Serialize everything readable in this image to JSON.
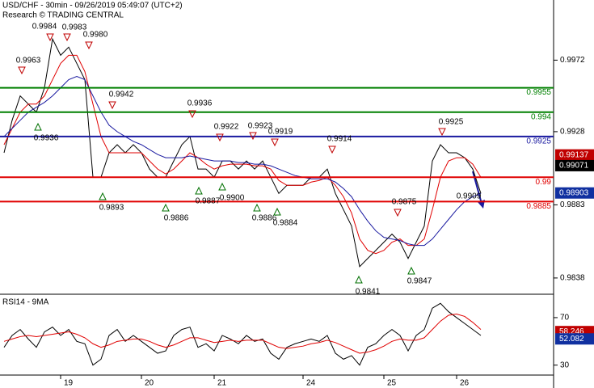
{
  "chart_data": [
    {
      "type": "line",
      "title": "USD/CHF - 30min - 09/26/2019 05:49:07 (UTC+2)",
      "subtitle": "Research © TRADING CENTRAL",
      "ylim": [
        0.9829,
        1.0009
      ],
      "yticks": [
        0.9972,
        0.9928,
        0.9883,
        0.9838
      ],
      "series": [
        {
          "name": "Close",
          "color": "#000000",
          "values": [
            0.9915,
            0.9935,
            0.995,
            0.9945,
            0.994,
            0.9955,
            0.9985,
            0.9975,
            0.998,
            0.997,
            0.996,
            0.99,
            0.99,
            0.9915,
            0.992,
            0.9915,
            0.992,
            0.9915,
            0.9905,
            0.99,
            0.99,
            0.991,
            0.992,
            0.9925,
            0.9905,
            0.9905,
            0.99,
            0.991,
            0.991,
            0.9905,
            0.991,
            0.9905,
            0.991,
            0.99,
            0.989,
            0.9895,
            0.9895,
            0.9895,
            0.99,
            0.99,
            0.9905,
            0.989,
            0.988,
            0.987,
            0.9845,
            0.985,
            0.9855,
            0.986,
            0.9865,
            0.986,
            0.985,
            0.986,
            0.987,
            0.991,
            0.992,
            0.9915,
            0.9915,
            0.9912,
            0.9905,
            0.989
          ]
        },
        {
          "name": "MA fast",
          "color": "#e00000",
          "values": [
            0.992,
            0.993,
            0.994,
            0.9945,
            0.9945,
            0.995,
            0.996,
            0.997,
            0.9975,
            0.9975,
            0.9965,
            0.9945,
            0.9925,
            0.9915,
            0.9915,
            0.9915,
            0.9915,
            0.9915,
            0.991,
            0.9905,
            0.9902,
            0.9905,
            0.991,
            0.9915,
            0.9912,
            0.9908,
            0.9905,
            0.9907,
            0.9908,
            0.9908,
            0.9908,
            0.9907,
            0.9907,
            0.9905,
            0.9898,
            0.9895,
            0.9895,
            0.9895,
            0.9897,
            0.9898,
            0.99,
            0.9895,
            0.9888,
            0.9878,
            0.9862,
            0.9855,
            0.9853,
            0.9855,
            0.986,
            0.9862,
            0.9858,
            0.9858,
            0.9862,
            0.988,
            0.99,
            0.991,
            0.9912,
            0.9912,
            0.9908,
            0.99
          ]
        },
        {
          "name": "MA slow",
          "color": "#1a1aa0",
          "values": [
            0.9925,
            0.993,
            0.9935,
            0.994,
            0.9943,
            0.9946,
            0.995,
            0.9955,
            0.996,
            0.9962,
            0.996,
            0.995,
            0.994,
            0.9932,
            0.9928,
            0.9925,
            0.9922,
            0.992,
            0.9917,
            0.9914,
            0.9912,
            0.9912,
            0.9912,
            0.9913,
            0.9912,
            0.9911,
            0.991,
            0.991,
            0.991,
            0.9909,
            0.9909,
            0.9908,
            0.9908,
            0.9907,
            0.9905,
            0.9903,
            0.9901,
            0.99,
            0.9899,
            0.9899,
            0.9899,
            0.9897,
            0.9893,
            0.9888,
            0.988,
            0.9873,
            0.9867,
            0.9863,
            0.9862,
            0.9861,
            0.9859,
            0.9858,
            0.9858,
            0.9862,
            0.9868,
            0.9874,
            0.988,
            0.9885,
            0.9888,
            0.989
          ]
        }
      ],
      "levels": [
        {
          "value": 0.9955,
          "color": "#008000"
        },
        {
          "value": 0.994,
          "color": "#008000"
        },
        {
          "value": 0.9925,
          "color": "#1a1aa0"
        },
        {
          "value": 0.99,
          "color": "#e00000"
        },
        {
          "value": 0.9885,
          "color": "#e00000"
        }
      ],
      "markers": [
        {
          "value": 0.99137,
          "color": "#c00000"
        },
        {
          "value": 0.99071,
          "color": "#000000"
        },
        {
          "value": 0.98903,
          "color": "#1030a0"
        }
      ],
      "annotations": [
        "0.9963",
        "0.9984",
        "0.9983",
        "0.9980",
        "0.9942",
        "0.9936",
        "0.9922",
        "0.9923",
        "0.9919",
        "0.9914",
        "0.9925",
        "0.9875",
        "0.9936",
        "0.9893",
        "0.9886",
        "0.9887",
        "0.9900",
        "0.9886",
        "0.9884",
        "0.9841",
        "0.9847",
        "0.9909"
      ]
    },
    {
      "type": "line",
      "title": "RSI14 - 9MA",
      "ylim": [
        23,
        89
      ],
      "yticks": [
        70,
        30
      ],
      "categories": [
        null,
        null,
        null,
        null,
        null,
        null,
        null,
        "19",
        null,
        null,
        null,
        null,
        null,
        null,
        null,
        null,
        null,
        "20",
        null,
        null,
        null,
        null,
        null,
        null,
        null,
        null,
        "21",
        null,
        null,
        null,
        null,
        null,
        null,
        null,
        null,
        null,
        null,
        "24",
        null,
        null,
        null,
        null,
        null,
        null,
        null,
        null,
        null,
        "25",
        null,
        null,
        null,
        null,
        null,
        null,
        null,
        null,
        "26",
        null,
        null,
        null
      ],
      "series": [
        {
          "name": "RSI",
          "color": "#000000",
          "values": [
            45,
            55,
            60,
            52,
            45,
            58,
            62,
            55,
            60,
            50,
            48,
            30,
            35,
            55,
            60,
            50,
            55,
            50,
            45,
            40,
            42,
            55,
            60,
            62,
            45,
            48,
            42,
            55,
            52,
            48,
            55,
            50,
            52,
            40,
            35,
            45,
            48,
            50,
            52,
            50,
            55,
            40,
            35,
            38,
            30,
            45,
            48,
            55,
            60,
            55,
            42,
            55,
            60,
            78,
            82,
            75,
            70,
            65,
            60,
            55
          ]
        },
        {
          "name": "MA",
          "color": "#e00000",
          "values": [
            50,
            52,
            54,
            55,
            54,
            55,
            56,
            57,
            58,
            56,
            53,
            48,
            45,
            47,
            50,
            51,
            52,
            52,
            50,
            47,
            45,
            47,
            50,
            53,
            53,
            51,
            49,
            50,
            51,
            50,
            51,
            51,
            51,
            48,
            45,
            44,
            45,
            46,
            48,
            49,
            51,
            49,
            46,
            43,
            40,
            41,
            43,
            46,
            50,
            52,
            51,
            51,
            53,
            60,
            67,
            72,
            73,
            71,
            66,
            60
          ]
        }
      ],
      "markers": [
        {
          "value": 58.246,
          "color": "#c00000"
        },
        {
          "value": 52.082,
          "color": "#1030a0"
        }
      ]
    }
  ]
}
